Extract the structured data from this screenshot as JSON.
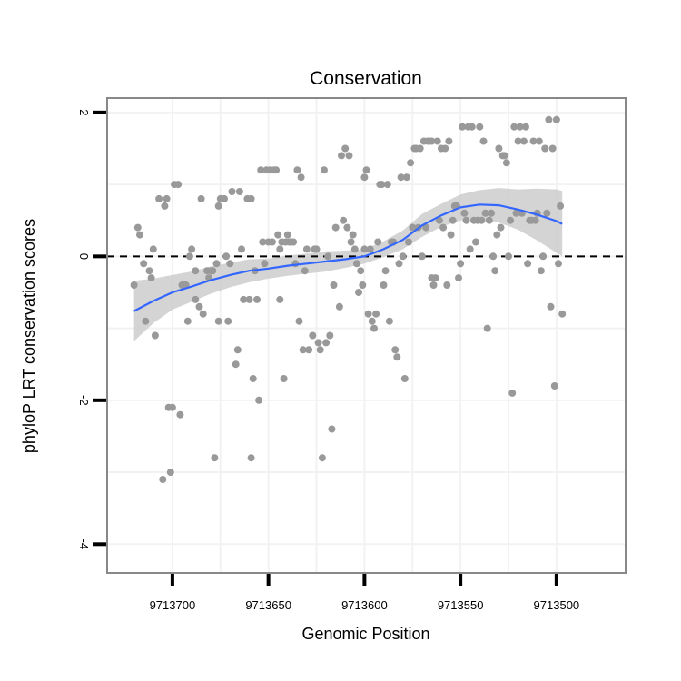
{
  "chart_data": {
    "type": "scatter",
    "title": "Conservation",
    "xlabel": "Genomic Position",
    "ylabel": "phyloP LRT conservation scores",
    "x_reversed": true,
    "xlim": [
      9713734,
      9713464
    ],
    "ylim": [
      -4.4,
      2.2
    ],
    "xticks": [
      9713700,
      9713650,
      9713600,
      9713550,
      9713500
    ],
    "xtick_labels": [
      "9713700",
      "9713650",
      "9713600",
      "9713550",
      "9713500"
    ],
    "yticks": [
      2,
      0,
      -2,
      -4
    ],
    "ytick_labels": [
      "2",
      "0",
      "-2",
      "-4"
    ],
    "grid": true,
    "reference_line": {
      "y": 0,
      "style": "dashed"
    },
    "colors": {
      "points": "#999999",
      "smooth": "#3366ff",
      "ribbon": "#cccccc",
      "refline": "#000000",
      "panel_border": "#888888"
    },
    "points": [
      [
        9713720,
        -0.4
      ],
      [
        9713718,
        0.4
      ],
      [
        9713717,
        0.3
      ],
      [
        9713715,
        -0.1
      ],
      [
        9713714,
        -0.9
      ],
      [
        9713712,
        -0.2
      ],
      [
        9713711,
        -0.3
      ],
      [
        9713710,
        0.1
      ],
      [
        9713709,
        -1.1
      ],
      [
        9713707,
        0.8
      ],
      [
        9713705,
        -3.1
      ],
      [
        9713704,
        0.7
      ],
      [
        9713703,
        0.8
      ],
      [
        9713702,
        -2.1
      ],
      [
        9713701,
        -3.0
      ],
      [
        9713700,
        -2.1
      ],
      [
        9713699,
        1.0
      ],
      [
        9713697,
        1.0
      ],
      [
        9713696,
        -2.2
      ],
      [
        9713695,
        -0.4
      ],
      [
        9713694,
        -0.4
      ],
      [
        9713693,
        -0.4
      ],
      [
        9713692,
        -0.9
      ],
      [
        9713691,
        0.0
      ],
      [
        9713690,
        0.1
      ],
      [
        9713688,
        -0.2
      ],
      [
        9713688,
        -0.6
      ],
      [
        9713686,
        -0.7
      ],
      [
        9713685,
        0.8
      ],
      [
        9713684,
        -0.8
      ],
      [
        9713682,
        -0.2
      ],
      [
        9713681,
        -0.3
      ],
      [
        9713680,
        -0.2
      ],
      [
        9713679,
        -0.2
      ],
      [
        9713678,
        -2.8
      ],
      [
        9713677,
        -0.1
      ],
      [
        9713676,
        -0.9
      ],
      [
        9713676,
        0.7
      ],
      [
        9713675,
        0.8
      ],
      [
        9713673,
        0.8
      ],
      [
        9713672,
        0.0
      ],
      [
        9713671,
        -0.9
      ],
      [
        9713670,
        -0.1
      ],
      [
        9713669,
        0.9
      ],
      [
        9713667,
        -1.5
      ],
      [
        9713666,
        -1.3
      ],
      [
        9713665,
        0.9
      ],
      [
        9713664,
        0.1
      ],
      [
        9713663,
        -0.6
      ],
      [
        9713661,
        0.8
      ],
      [
        9713660,
        -0.6
      ],
      [
        9713659,
        -2.8
      ],
      [
        9713659,
        0.8
      ],
      [
        9713658,
        -1.7
      ],
      [
        9713657,
        -0.2
      ],
      [
        9713656,
        -0.6
      ],
      [
        9713655,
        -2.0
      ],
      [
        9713654,
        1.2
      ],
      [
        9713653,
        0.2
      ],
      [
        9713652,
        -0.1
      ],
      [
        9713651,
        1.2
      ],
      [
        9713650,
        0.2
      ],
      [
        9713649,
        1.2
      ],
      [
        9713648,
        0.2
      ],
      [
        9713647,
        1.2
      ],
      [
        9713646,
        1.2
      ],
      [
        9713645,
        0.3
      ],
      [
        9713644,
        0.1
      ],
      [
        9713644,
        -0.6
      ],
      [
        9713643,
        0.2
      ],
      [
        9713642,
        -1.7
      ],
      [
        9713641,
        0.2
      ],
      [
        9713640,
        0.3
      ],
      [
        9713639,
        0.2
      ],
      [
        9713638,
        0.2
      ],
      [
        9713637,
        0.2
      ],
      [
        9713636,
        -0.1
      ],
      [
        9713635,
        1.2
      ],
      [
        9713634,
        -0.9
      ],
      [
        9713633,
        1.1
      ],
      [
        9713632,
        -1.3
      ],
      [
        9713631,
        -0.2
      ],
      [
        9713630,
        0.1
      ],
      [
        9713629,
        -1.3
      ],
      [
        9713627,
        -1.1
      ],
      [
        9713626,
        0.1
      ],
      [
        9713625,
        0.1
      ],
      [
        9713624,
        -1.2
      ],
      [
        9713623,
        -1.3
      ],
      [
        9713622,
        -2.8
      ],
      [
        9713621,
        1.2
      ],
      [
        9713620,
        -1.2
      ],
      [
        9713619,
        0.0
      ],
      [
        9713618,
        -1.1
      ],
      [
        9713617,
        -2.4
      ],
      [
        9713616,
        -0.4
      ],
      [
        9713615,
        0.4
      ],
      [
        9713613,
        -0.7
      ],
      [
        9713612,
        1.4
      ],
      [
        9713611,
        0.5
      ],
      [
        9713610,
        1.5
      ],
      [
        9713609,
        0.4
      ],
      [
        9713608,
        1.4
      ],
      [
        9713607,
        0.2
      ],
      [
        9713606,
        0.3
      ],
      [
        9713605,
        0.1
      ],
      [
        9713604,
        -0.1
      ],
      [
        9713603,
        -0.5
      ],
      [
        9713602,
        -0.2
      ],
      [
        9713601,
        -0.4
      ],
      [
        9713600,
        0.1
      ],
      [
        9713600,
        1.1
      ],
      [
        9713599,
        1.2
      ],
      [
        9713598,
        -0.8
      ],
      [
        9713597,
        0.1
      ],
      [
        9713596,
        -0.9
      ],
      [
        9713595,
        -1.0
      ],
      [
        9713594,
        -0.8
      ],
      [
        9713593,
        0.2
      ],
      [
        9713592,
        1.0
      ],
      [
        9713591,
        1.0
      ],
      [
        9713590,
        -0.4
      ],
      [
        9713589,
        -0.2
      ],
      [
        9713588,
        1.0
      ],
      [
        9713587,
        -0.9
      ],
      [
        9713586,
        0.2
      ],
      [
        9713585,
        0.2
      ],
      [
        9713584,
        -1.3
      ],
      [
        9713583,
        -1.4
      ],
      [
        9713582,
        -0.1
      ],
      [
        9713581,
        1.1
      ],
      [
        9713580,
        0.0
      ],
      [
        9713579,
        -1.7
      ],
      [
        9713578,
        1.1
      ],
      [
        9713577,
        0.2
      ],
      [
        9713576,
        1.3
      ],
      [
        9713575,
        0.4
      ],
      [
        9713574,
        1.5
      ],
      [
        9713573,
        1.5
      ],
      [
        9713572,
        0.4
      ],
      [
        9713571,
        1.5
      ],
      [
        9713570,
        0.0
      ],
      [
        9713569,
        1.6
      ],
      [
        9713568,
        0.4
      ],
      [
        9713567,
        1.6
      ],
      [
        9713566,
        1.6
      ],
      [
        9713565,
        -0.3
      ],
      [
        9713565,
        1.6
      ],
      [
        9713564,
        -0.4
      ],
      [
        9713563,
        -0.3
      ],
      [
        9713562,
        1.6
      ],
      [
        9713561,
        0.5
      ],
      [
        9713560,
        1.5
      ],
      [
        9713559,
        0.4
      ],
      [
        9713558,
        1.5
      ],
      [
        9713557,
        -0.4
      ],
      [
        9713556,
        1.6
      ],
      [
        9713555,
        0.3
      ],
      [
        9713554,
        0.5
      ],
      [
        9713553,
        0.7
      ],
      [
        9713552,
        0.7
      ],
      [
        9713551,
        -0.3
      ],
      [
        9713550,
        -0.1
      ],
      [
        9713549,
        1.8
      ],
      [
        9713548,
        0.6
      ],
      [
        9713547,
        0.5
      ],
      [
        9713546,
        1.8
      ],
      [
        9713545,
        0.1
      ],
      [
        9713544,
        1.8
      ],
      [
        9713543,
        0.5
      ],
      [
        9713542,
        0.2
      ],
      [
        9713541,
        0.5
      ],
      [
        9713540,
        1.8
      ],
      [
        9713539,
        0.5
      ],
      [
        9713538,
        1.6
      ],
      [
        9713537,
        0.6
      ],
      [
        9713536,
        -1.0
      ],
      [
        9713535,
        0.5
      ],
      [
        9713534,
        0.6
      ],
      [
        9713533,
        0.0
      ],
      [
        9713532,
        -0.2
      ],
      [
        9713531,
        0.3
      ],
      [
        9713530,
        1.5
      ],
      [
        9713529,
        0.4
      ],
      [
        9713528,
        1.4
      ],
      [
        9713527,
        1.4
      ],
      [
        9713526,
        1.3
      ],
      [
        9713525,
        0.0
      ],
      [
        9713524,
        0.5
      ],
      [
        9713523,
        -1.9
      ],
      [
        9713522,
        1.8
      ],
      [
        9713521,
        0.6
      ],
      [
        9713520,
        1.6
      ],
      [
        9713519,
        1.8
      ],
      [
        9713518,
        0.6
      ],
      [
        9713517,
        1.6
      ],
      [
        9713516,
        1.8
      ],
      [
        9713515,
        -0.1
      ],
      [
        9713514,
        0.5
      ],
      [
        9713513,
        0.5
      ],
      [
        9713512,
        1.6
      ],
      [
        9713511,
        0.5
      ],
      [
        9713510,
        0.6
      ],
      [
        9713509,
        1.6
      ],
      [
        9713508,
        -0.2
      ],
      [
        9713507,
        0.0
      ],
      [
        9713506,
        1.5
      ],
      [
        9713505,
        0.6
      ],
      [
        9713504,
        1.9
      ],
      [
        9713503,
        -0.7
      ],
      [
        9713502,
        1.5
      ],
      [
        9713501,
        -1.8
      ],
      [
        9713500,
        1.9
      ],
      [
        9713499,
        -0.1
      ],
      [
        9713498,
        0.7
      ],
      [
        9713497,
        -0.8
      ]
    ],
    "smooth": {
      "x": [
        9713720,
        9713710,
        9713700,
        9713690,
        9713680,
        9713670,
        9713660,
        9713650,
        9713640,
        9713630,
        9713620,
        9713610,
        9713600,
        9713590,
        9713580,
        9713570,
        9713560,
        9713550,
        9713540,
        9713530,
        9713520,
        9713510,
        9713500,
        9713497
      ],
      "y": [
        -0.76,
        -0.62,
        -0.5,
        -0.42,
        -0.33,
        -0.26,
        -0.2,
        -0.17,
        -0.13,
        -0.1,
        -0.07,
        -0.04,
        0.0,
        0.1,
        0.23,
        0.43,
        0.57,
        0.68,
        0.72,
        0.71,
        0.65,
        0.58,
        0.49,
        0.45
      ],
      "lower": [
        -1.18,
        -0.93,
        -0.74,
        -0.63,
        -0.52,
        -0.43,
        -0.36,
        -0.31,
        -0.27,
        -0.24,
        -0.21,
        -0.16,
        -0.1,
        -0.01,
        0.1,
        0.27,
        0.41,
        0.5,
        0.52,
        0.47,
        0.37,
        0.22,
        0.05,
        0.0
      ],
      "upper": [
        -0.34,
        -0.31,
        -0.26,
        -0.21,
        -0.14,
        -0.09,
        -0.04,
        -0.03,
        0.01,
        0.04,
        0.07,
        0.08,
        0.1,
        0.21,
        0.36,
        0.59,
        0.73,
        0.86,
        0.92,
        0.95,
        0.93,
        0.94,
        0.93,
        0.91
      ]
    }
  }
}
